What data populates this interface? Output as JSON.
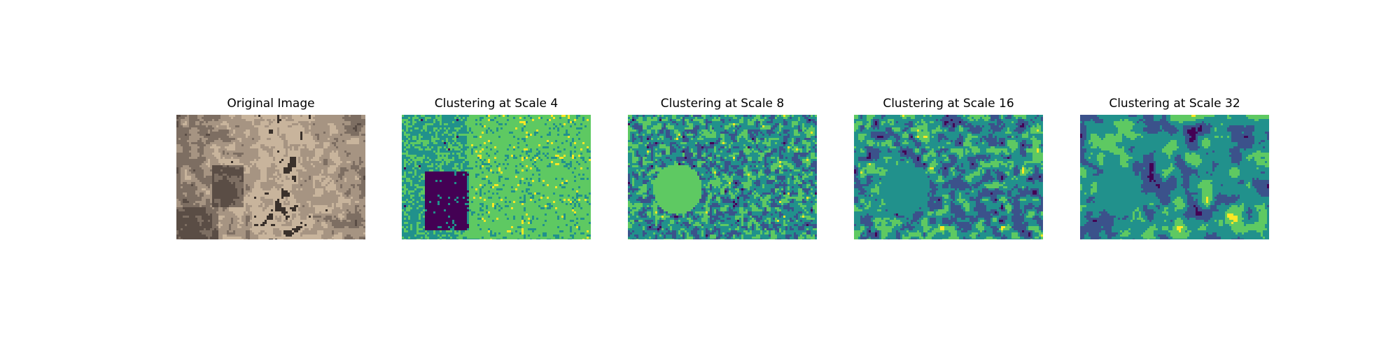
{
  "panels": [
    {
      "title": "Original Image",
      "kind": "photo"
    },
    {
      "title": "Clustering at Scale 4",
      "kind": "cluster",
      "scale": 4
    },
    {
      "title": "Clustering at Scale 8",
      "kind": "cluster",
      "scale": 8
    },
    {
      "title": "Clustering at Scale 16",
      "kind": "cluster",
      "scale": 16
    },
    {
      "title": "Clustering at Scale 32",
      "kind": "cluster",
      "scale": 32
    }
  ],
  "colors": {
    "cluster_palette": [
      "#440154",
      "#3b528b",
      "#21918c",
      "#5ec962",
      "#fde725"
    ],
    "photo_palette": [
      "#5a4d45",
      "#7d6e62",
      "#a69482",
      "#c8b49c",
      "#3a312b"
    ]
  }
}
